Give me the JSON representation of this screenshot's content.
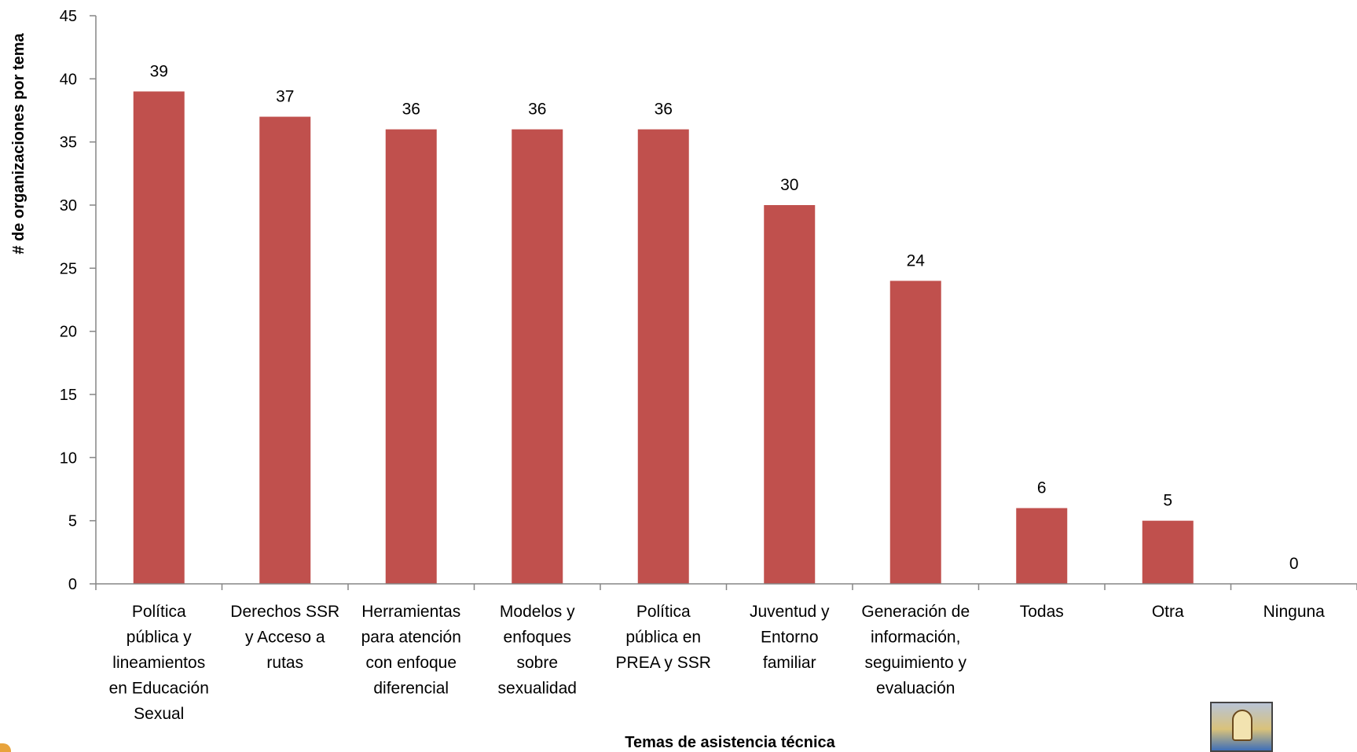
{
  "chart_data": {
    "type": "bar",
    "categories": [
      [
        "Política",
        "pública y",
        "lineamientos",
        "en Educación",
        "Sexual"
      ],
      [
        "Derechos SSR",
        "y Acceso a",
        "rutas"
      ],
      [
        "Herramientas",
        "para atención",
        "con enfoque",
        "diferencial"
      ],
      [
        "Modelos y",
        "enfoques",
        "sobre",
        "sexualidad"
      ],
      [
        "Política",
        "pública en",
        "PREA y SSR"
      ],
      [
        "Juventud y",
        "Entorno",
        "familiar"
      ],
      [
        "Generación de",
        "información,",
        "seguimiento y",
        "evaluación"
      ],
      [
        "Todas"
      ],
      [
        "Otra"
      ],
      [
        "Ninguna"
      ]
    ],
    "values": [
      39,
      37,
      36,
      36,
      36,
      30,
      24,
      6,
      5,
      0
    ],
    "xlabel": "Temas de asistencia técnica",
    "ylabel": "# de organizaciones por tema",
    "ylim": [
      0,
      45
    ],
    "yticks": [
      0,
      5,
      10,
      15,
      20,
      25,
      30,
      35,
      40,
      45
    ],
    "grid": false,
    "legend": "none",
    "data_labels": true,
    "bar_color": "#c0504d",
    "axis_color": "#868686"
  }
}
